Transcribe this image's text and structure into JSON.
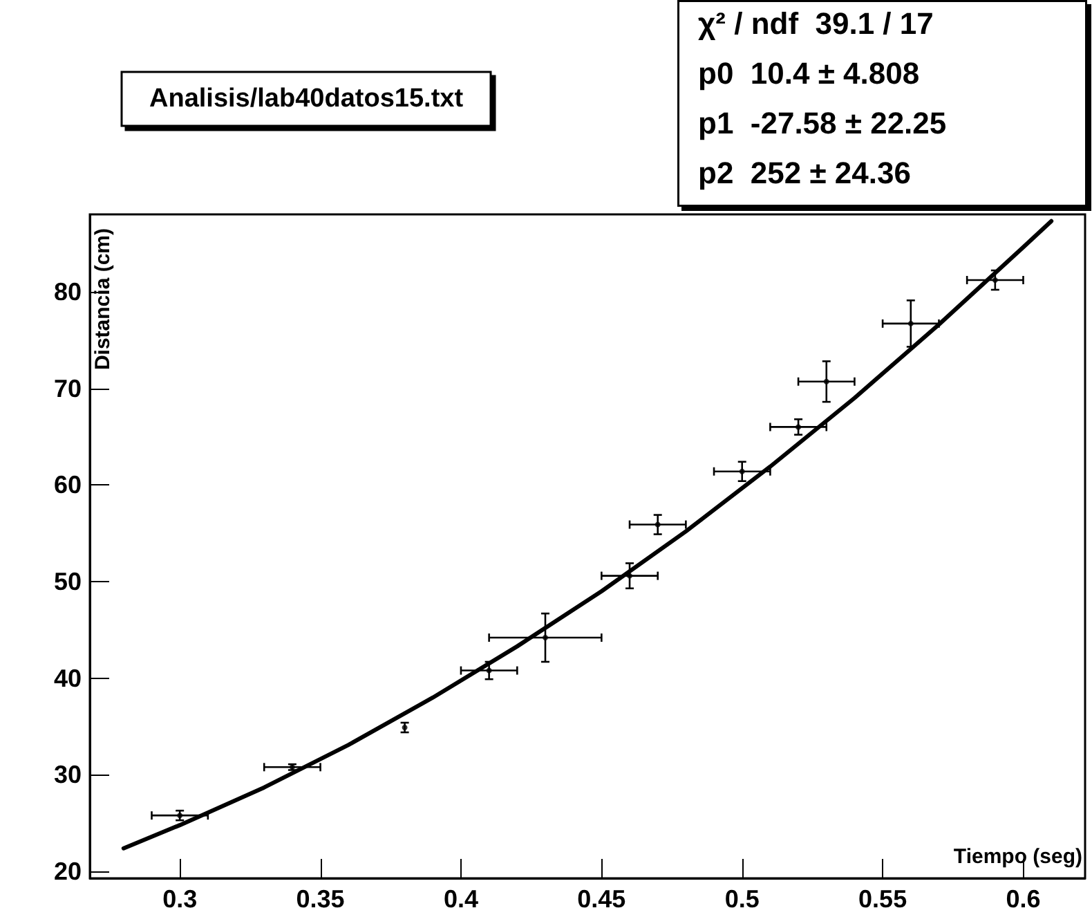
{
  "chart_data": {
    "type": "scatter",
    "title": "Analisis/lab40datos15.txt",
    "xlabel": "Tiempo (seg)",
    "ylabel": "Distancia (cm)",
    "annotations": [
      "χ² / ndf  39.1 / 17",
      "p0  10.4 ± 4.808",
      "p1  -27.58 ± 22.25",
      "p2  252 ± 24.36"
    ],
    "xlim": [
      0.268,
      0.622
    ],
    "xticks": [
      0.3,
      0.35,
      0.4,
      0.45,
      0.5,
      0.55,
      0.6
    ],
    "ylim": [
      19.3,
      88
    ],
    "yticks": [
      20,
      30,
      40,
      50,
      60,
      70,
      80
    ],
    "grid": false,
    "series": [
      {
        "color": "#000000",
        "x": [
          0.3,
          0.34,
          0.38,
          0.41,
          0.43,
          0.46,
          0.47,
          0.5,
          0.52,
          0.53,
          0.56,
          0.59
        ],
        "values": [
          25.8,
          30.8,
          34.9,
          40.8,
          44.2,
          50.6,
          55.9,
          61.4,
          66.0,
          70.7,
          76.7,
          81.2
        ],
        "errors": [
          0.5,
          0.3,
          0.5,
          0.9,
          2.5,
          1.3,
          1.0,
          1.0,
          0.8,
          2.1,
          2.4,
          1.0
        ],
        "xerrors": [
          0.01,
          0.01,
          null,
          0.01,
          0.02,
          0.01,
          0.01,
          0.01,
          0.01,
          0.01,
          0.01,
          0.01
        ]
      },
      {
        "type": "line",
        "color": "#000000",
        "line_style": "solid",
        "x": [
          0.28,
          0.3,
          0.33,
          0.36,
          0.39,
          0.42,
          0.45,
          0.48,
          0.51,
          0.54,
          0.57,
          0.6,
          0.61
        ],
        "values": [
          22.4,
          24.8,
          28.7,
          33.1,
          38.0,
          43.3,
          49.0,
          55.2,
          61.9,
          69.0,
          76.6,
          84.6,
          87.3
        ]
      }
    ]
  }
}
